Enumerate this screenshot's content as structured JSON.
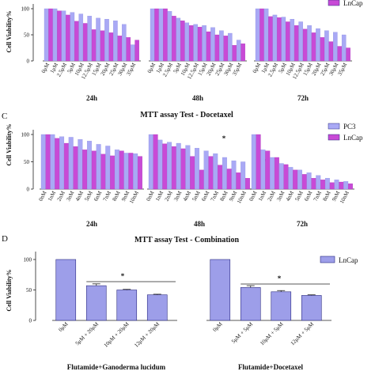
{
  "colors": {
    "pc3": "#a9a9f5",
    "lncap": "#c84ad6",
    "bar_edge": "#2b2b80",
    "combo": "#9d9ee9"
  },
  "chart_data": [
    {
      "type": "bar",
      "panel_label": "",
      "title": "",
      "ylabel": "Cell Viability%",
      "ylim": [
        0,
        100
      ],
      "yticks": [
        0,
        50,
        100
      ],
      "groups": [
        "24h",
        "48h",
        "72h"
      ],
      "categories": [
        "0μM",
        "1μM",
        "2.5μM",
        "5μM",
        "10μM",
        "12.5μM",
        "15μM",
        "20μM",
        "25μM",
        "30μM",
        "35μM"
      ],
      "series": [
        {
          "name": "PC3",
          "values": [
            [
              100,
              100,
              96,
              93,
              90,
              86,
              82,
              80,
              77,
              70,
              31
            ],
            [
              100,
              100,
              95,
              82,
              73,
              70,
              68,
              64,
              58,
              53,
              40
            ],
            [
              100,
              100,
              88,
              84,
              80,
              75,
              68,
              62,
              58,
              55,
              50
            ]
          ]
        },
        {
          "name": "LnCap",
          "values": [
            [
              100,
              96,
              88,
              76,
              72,
              60,
              58,
              54,
              48,
              45,
              40
            ],
            [
              100,
              100,
              86,
              77,
              68,
              65,
              56,
              50,
              48,
              30,
              33
            ],
            [
              100,
              85,
              83,
              75,
              68,
              61,
              54,
              45,
              37,
              28,
              25
            ]
          ]
        }
      ],
      "legend": [
        "LnCap"
      ],
      "annotations": [
        "*"
      ]
    },
    {
      "type": "bar",
      "panel_label": "C",
      "title": "MTT assay Test - Docetaxel",
      "ylabel": "Cell Viability%",
      "ylim": [
        0,
        100
      ],
      "yticks": [
        0,
        50,
        100
      ],
      "groups": [
        "24h",
        "48h",
        "72h"
      ],
      "categories": [
        "0nM",
        "1nM",
        "2nM",
        "3nM",
        "4nM",
        "5nM",
        "6nM",
        "7nM",
        "8nM",
        "9nM",
        "10nM"
      ],
      "series": [
        {
          "name": "PC3",
          "values": [
            [
              100,
              100,
              96,
              95,
              91,
              88,
              82,
              79,
              72,
              66,
              65
            ],
            [
              100,
              90,
              86,
              84,
              80,
              75,
              70,
              65,
              58,
              52,
              50
            ],
            [
              100,
              72,
              58,
              47,
              40,
              35,
              30,
              25,
              20,
              17,
              14
            ]
          ]
        },
        {
          "name": "LnCap",
          "values": [
            [
              100,
              93,
              84,
              78,
              72,
              70,
              64,
              61,
              70,
              66,
              60
            ],
            [
              100,
              83,
              78,
              74,
              60,
              35,
              60,
              44,
              37,
              30,
              20
            ],
            [
              100,
              70,
              58,
              45,
              35,
              27,
              20,
              17,
              12,
              13,
              10
            ]
          ]
        }
      ],
      "legend": [
        "PC3",
        "LnCap"
      ],
      "annotations": [
        "*",
        "*"
      ]
    },
    {
      "type": "bar",
      "panel_label": "D",
      "title": "MTT assay Test - Combination",
      "ylabel": "Cell Viability%",
      "ylim": [
        0,
        100
      ],
      "yticks": [
        0,
        50,
        100
      ],
      "groups": [
        "Flutamide+Ganoderma lucidum",
        "Flutamide+Docetaxel"
      ],
      "categories": [
        [
          "0μM",
          "5μM + 20μM",
          "10μM + 20μM",
          "12μM + 20μM"
        ],
        [
          "0μM",
          "5μM + 5μM",
          "10μM + 5μM",
          "12μM + 5μM"
        ]
      ],
      "series": [
        {
          "name": "LnCap",
          "values": [
            [
              100,
              57,
              50,
              42
            ],
            [
              100,
              54,
              47,
              41
            ]
          ],
          "errors": [
            [
              0,
              3,
              1,
              1
            ],
            [
              0,
              3,
              2,
              1
            ]
          ]
        }
      ],
      "legend": [
        "LnCap"
      ],
      "annotations": [
        "*",
        "*"
      ]
    }
  ]
}
